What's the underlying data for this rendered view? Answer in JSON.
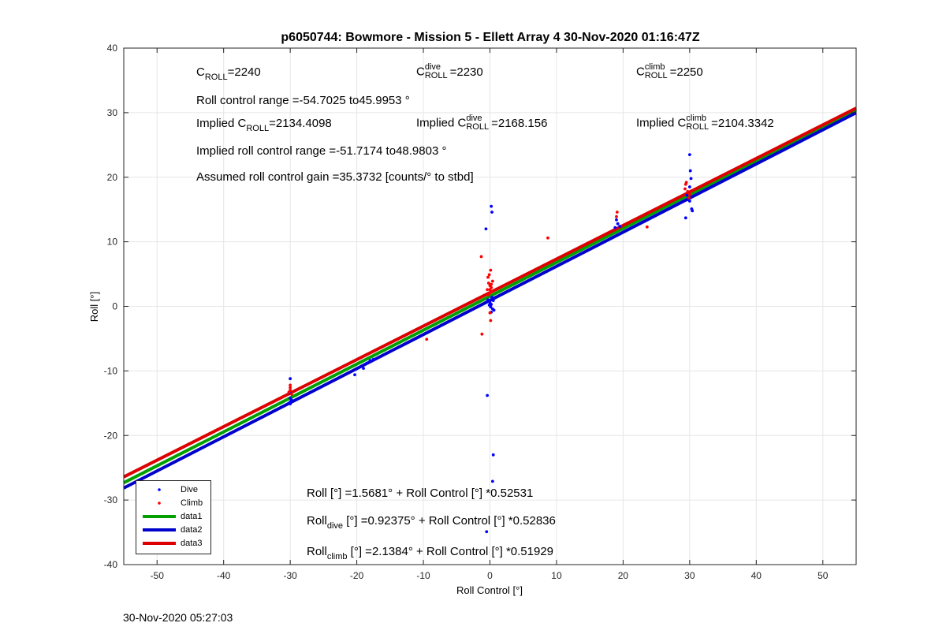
{
  "chart_data": {
    "type": "scatter",
    "title": "p6050744: Bowmore - Mission 5 - Ellett Array 4 30-Nov-2020 01:16:47Z",
    "xlabel": "Roll Control [°]",
    "ylabel": "Roll [°]",
    "xlim": [
      -55,
      55
    ],
    "ylim": [
      -40,
      40
    ],
    "xticks": [
      -50,
      -40,
      -30,
      -20,
      -10,
      0,
      10,
      20,
      30,
      40,
      50
    ],
    "yticks": [
      -40,
      -30,
      -20,
      -10,
      0,
      10,
      20,
      30,
      40
    ],
    "grid": true,
    "legend_placement": "bottom-left",
    "series": [
      {
        "name": "Dive",
        "kind": "points",
        "color": "#0000ff",
        "points": [
          [
            -30,
            -11.2
          ],
          [
            -30,
            -13.5
          ],
          [
            -30,
            -14.2
          ],
          [
            -30,
            -14.8
          ],
          [
            -30,
            -15.1
          ],
          [
            -29.8,
            -14.5
          ],
          [
            -20.3,
            -10.6
          ],
          [
            -19,
            -9.6
          ],
          [
            -18.5,
            -8.8
          ],
          [
            -18,
            -8.4
          ],
          [
            -17.5,
            -8.2
          ],
          [
            -0.6,
            12
          ],
          [
            -0.4,
            -13.8
          ],
          [
            0.2,
            15.5
          ],
          [
            0.3,
            14.6
          ],
          [
            0.5,
            -23
          ],
          [
            0.4,
            -27.1
          ],
          [
            -0.5,
            -34.9
          ],
          [
            -0.3,
            1.0
          ],
          [
            0,
            0.6
          ],
          [
            0.2,
            0.3
          ],
          [
            0.4,
            -0.4
          ],
          [
            -0.2,
            0.8
          ],
          [
            0.6,
            -0.6
          ],
          [
            0.1,
            -0.1
          ],
          [
            0.3,
            1.4
          ],
          [
            -0.1,
            0.2
          ],
          [
            0.5,
            0.9
          ],
          [
            0.2,
            -0.9
          ],
          [
            18.8,
            12.2
          ],
          [
            19,
            13.4
          ],
          [
            19.5,
            12.4
          ],
          [
            19.2,
            12.8
          ],
          [
            29.4,
            13.7
          ],
          [
            30,
            23.5
          ],
          [
            30.1,
            21
          ],
          [
            30.2,
            19.8
          ],
          [
            29.8,
            16.5
          ],
          [
            30,
            16.3
          ],
          [
            30.3,
            15.1
          ],
          [
            30.4,
            14.8
          ],
          [
            30,
            18.5
          ],
          [
            29.6,
            17.2
          ]
        ]
      },
      {
        "name": "Climb",
        "kind": "points",
        "color": "#ff0000",
        "points": [
          [
            -30,
            -12.6
          ],
          [
            -30,
            -13
          ],
          [
            -30.2,
            -13.3
          ],
          [
            -29.8,
            -13.6
          ],
          [
            -30,
            -12.2
          ],
          [
            -9.5,
            -5.1
          ],
          [
            -1.3,
            7.7
          ],
          [
            -1.2,
            -4.3
          ],
          [
            0,
            -1
          ],
          [
            0.1,
            -2.2
          ],
          [
            8.7,
            10.6
          ],
          [
            -0.3,
            4.5
          ],
          [
            -0.2,
            3.6
          ],
          [
            0,
            3.2
          ],
          [
            0.2,
            2.9
          ],
          [
            -0.4,
            2.6
          ],
          [
            0.3,
            2.3
          ],
          [
            0.1,
            5.6
          ],
          [
            0,
            2.1
          ],
          [
            -0.2,
            1.8
          ],
          [
            0.4,
            3.9
          ],
          [
            -0.1,
            4.9
          ],
          [
            0.2,
            3.4
          ],
          [
            0,
            2.6
          ],
          [
            19.1,
            14.6
          ],
          [
            19,
            13.9
          ],
          [
            23.6,
            12.3
          ],
          [
            29.4,
            18.9
          ],
          [
            29.7,
            17.8
          ],
          [
            29.5,
            19.2
          ],
          [
            29.9,
            16.8
          ],
          [
            30,
            17.3
          ],
          [
            29.3,
            18.2
          ]
        ]
      },
      {
        "name": "data1",
        "kind": "line",
        "color": "#00a000",
        "x": [
          -55,
          55
        ],
        "y": [
          -27.323,
          30.46
        ]
      },
      {
        "name": "data2",
        "kind": "line",
        "color": "#0000cc",
        "x": [
          -55,
          55
        ],
        "y": [
          -28.136,
          29.984
        ]
      },
      {
        "name": "data3",
        "kind": "line",
        "color": "#dd0000",
        "x": [
          -55,
          55
        ],
        "y": [
          -26.423,
          30.7
        ]
      }
    ],
    "annotations": {
      "c_roll": {
        "base": "C",
        "sub": "ROLL",
        "value": "=2240"
      },
      "c_roll_dive": {
        "base": "C",
        "sup": "dive",
        "sub": "ROLL",
        "value": "=2230"
      },
      "c_roll_climb": {
        "base": "C",
        "sup": "climb",
        "sub": "ROLL",
        "value": "=2250"
      },
      "roll_range": "Roll control range =-54.7025 to45.9953 °",
      "implied_c_roll": {
        "prefix": "Implied C",
        "sub": "ROLL",
        "value": "=2134.4098"
      },
      "implied_c_roll_dive": {
        "prefix": "Implied C",
        "sup": "dive",
        "sub": "ROLL",
        "value": "=2168.156"
      },
      "implied_c_roll_climb": {
        "prefix": "Implied C",
        "sup": "climb",
        "sub": "ROLL",
        "value": "=2104.3342"
      },
      "implied_range": "Implied roll control range =-51.7174 to48.9803 °",
      "gain": "Assumed roll control gain =35.3732 [counts/° to stbd]",
      "fit_all": "Roll [°] =1.5681° + Roll Control [°] *0.52531",
      "fit_dive": {
        "base": "Roll",
        "sub": "dive",
        "rest": " [°] =0.92375° + Roll Control [°] *0.52836"
      },
      "fit_climb": {
        "base": "Roll",
        "sub": "climb",
        "rest": " [°] =2.1384° + Roll Control [°] *0.51929"
      }
    }
  },
  "footer_timestamp": "30-Nov-2020 05:27:03"
}
